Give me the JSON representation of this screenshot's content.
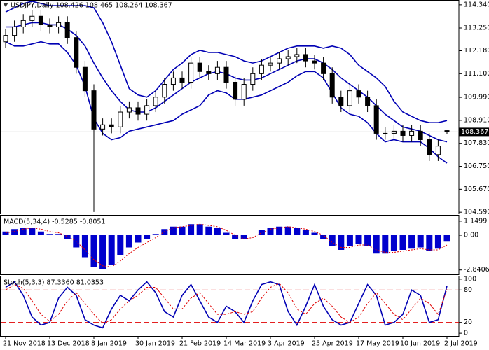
{
  "chart_data": [
    {
      "type": "candlestick",
      "title": "USDJPY,Daily 108.426 108.465 108.264 108.367",
      "categories": [
        "21 Nov 2018",
        null,
        null,
        null,
        null,
        "13 Dec 2018",
        null,
        null,
        null,
        null,
        "8 Jan 2019",
        null,
        null,
        null,
        null,
        "30 Jan 2019",
        null,
        null,
        null,
        null,
        "21 Feb 2019",
        null,
        null,
        null,
        null,
        "14 Mar 2019",
        null,
        null,
        null,
        null,
        "3 Apr 2019",
        null,
        null,
        null,
        null,
        "25 Apr 2019",
        null,
        null,
        null,
        null,
        "17 May 2019",
        null,
        null,
        null,
        null,
        "10 Jun 2019",
        null,
        null,
        null,
        null,
        "2 Jul 2019"
      ],
      "open": [
        112.6,
        112.9,
        113.3,
        113.6,
        113.8,
        113.4,
        113.3,
        113.5,
        112.8,
        111.4,
        110.3,
        108.5,
        108.7,
        108.6,
        109.3,
        109.5,
        109.2,
        109.6,
        110.0,
        110.6,
        110.9,
        110.7,
        111.6,
        111.2,
        111.1,
        111.4,
        110.7,
        109.9,
        110.6,
        111.1,
        111.5,
        111.6,
        111.8,
        111.9,
        112.0,
        111.7,
        111.6,
        111.1,
        110.0,
        109.6,
        110.3,
        110.0,
        109.6,
        108.3,
        108.3,
        108.4,
        108.2,
        108.4,
        108.0,
        107.3,
        108.426
      ],
      "high": [
        113.2,
        113.6,
        113.9,
        114.1,
        114.1,
        113.7,
        113.8,
        113.8,
        113.1,
        111.7,
        110.6,
        109.0,
        109.0,
        109.6,
        109.8,
        109.8,
        109.9,
        110.3,
        110.9,
        111.2,
        111.2,
        111.9,
        111.9,
        111.5,
        111.7,
        111.7,
        111.0,
        110.9,
        111.4,
        111.8,
        111.9,
        112.1,
        112.2,
        112.3,
        112.3,
        112.0,
        111.9,
        111.4,
        110.3,
        110.6,
        110.6,
        110.3,
        109.9,
        108.6,
        108.7,
        108.7,
        108.7,
        108.7,
        108.3,
        108.0,
        108.465
      ],
      "low": [
        112.3,
        112.6,
        113.0,
        113.3,
        113.1,
        113.0,
        113.0,
        112.5,
        111.1,
        110.0,
        104.6,
        108.2,
        108.3,
        108.3,
        109.0,
        108.9,
        108.9,
        109.3,
        109.7,
        110.3,
        110.4,
        110.4,
        110.9,
        110.8,
        110.8,
        110.4,
        109.6,
        109.6,
        110.3,
        110.8,
        111.2,
        111.3,
        111.5,
        111.6,
        111.4,
        111.3,
        110.8,
        109.7,
        109.3,
        109.3,
        109.7,
        109.3,
        108.0,
        108.0,
        108.0,
        107.9,
        107.9,
        107.7,
        107.0,
        107.0,
        108.264
      ],
      "close": [
        112.9,
        113.3,
        113.6,
        113.8,
        113.4,
        113.3,
        113.5,
        112.8,
        111.4,
        110.3,
        108.5,
        108.7,
        108.6,
        109.3,
        109.5,
        109.2,
        109.6,
        110.0,
        110.6,
        110.9,
        110.7,
        111.6,
        111.2,
        111.1,
        111.4,
        110.7,
        109.9,
        110.6,
        111.1,
        111.5,
        111.6,
        111.8,
        111.9,
        112.0,
        111.7,
        111.6,
        111.1,
        110.0,
        109.6,
        110.3,
        110.0,
        109.6,
        108.3,
        108.3,
        108.4,
        108.2,
        108.4,
        108.0,
        107.3,
        107.7,
        108.367
      ],
      "upper_band": [
        114.0,
        114.2,
        114.4,
        114.5,
        114.4,
        114.3,
        114.3,
        114.3,
        114.3,
        114.3,
        114.2,
        113.5,
        112.6,
        111.5,
        110.4,
        110.1,
        110.0,
        110.3,
        110.8,
        111.3,
        111.6,
        112.0,
        112.2,
        112.1,
        112.1,
        112.0,
        111.9,
        111.7,
        111.6,
        111.7,
        111.9,
        112.1,
        112.3,
        112.4,
        112.4,
        112.4,
        112.3,
        112.4,
        112.3,
        112.0,
        111.5,
        111.2,
        110.9,
        110.5,
        109.8,
        109.3,
        109.1,
        108.9,
        108.8,
        108.8,
        108.9
      ],
      "middle_band": [
        113.3,
        113.3,
        113.4,
        113.5,
        113.5,
        113.4,
        113.4,
        113.2,
        112.9,
        112.4,
        111.6,
        110.9,
        110.3,
        109.8,
        109.4,
        109.3,
        109.3,
        109.5,
        109.8,
        110.1,
        110.4,
        110.7,
        110.9,
        111.1,
        111.2,
        111.1,
        110.9,
        110.8,
        110.8,
        110.9,
        111.1,
        111.3,
        111.5,
        111.7,
        111.8,
        111.8,
        111.6,
        111.3,
        110.9,
        110.6,
        110.3,
        110.0,
        109.6,
        109.2,
        108.9,
        108.6,
        108.5,
        108.4,
        108.2,
        108.0,
        107.9
      ],
      "lower_band": [
        112.6,
        112.4,
        112.4,
        112.5,
        112.6,
        112.5,
        112.5,
        112.1,
        111.5,
        110.5,
        109.0,
        108.3,
        108.0,
        108.1,
        108.4,
        108.5,
        108.6,
        108.7,
        108.8,
        108.9,
        109.2,
        109.4,
        109.6,
        110.1,
        110.3,
        110.2,
        109.9,
        109.9,
        110.0,
        110.1,
        110.3,
        110.5,
        110.7,
        111.0,
        111.2,
        111.2,
        110.9,
        110.2,
        109.5,
        109.2,
        109.1,
        108.8,
        108.3,
        107.9,
        108.0,
        107.9,
        107.9,
        107.9,
        107.6,
        107.2,
        106.9
      ],
      "band_color": "#0000b4",
      "last_price": {
        "value": 108.367,
        "label": "108.367"
      },
      "ylim": [
        104.53,
        114.5
      ],
      "yticks": [
        {
          "value": 114.34,
          "label": "114.340"
        },
        {
          "value": 113.25,
          "label": "113.250"
        },
        {
          "value": 112.18,
          "label": "112.180"
        },
        {
          "value": 111.1,
          "label": "111.100"
        },
        {
          "value": 109.99,
          "label": "109.990"
        },
        {
          "value": 108.91,
          "label": "108.910"
        },
        {
          "value": 107.83,
          "label": "107.830"
        },
        {
          "value": 106.75,
          "label": "106.750"
        },
        {
          "value": 105.67,
          "label": "105.670"
        },
        {
          "value": 104.59,
          "label": "104.590"
        }
      ]
    },
    {
      "type": "bar",
      "title": "MACD(5,34,4) -0.5285 -0.8051",
      "color": "#0000cd",
      "signal_color": "#e00000",
      "values": [
        0.3,
        0.5,
        0.6,
        0.6,
        0.3,
        0.1,
        0.1,
        -0.3,
        -1.0,
        -1.8,
        -2.6,
        -2.8,
        -2.4,
        -1.6,
        -1.0,
        -0.6,
        -0.3,
        0.1,
        0.5,
        0.7,
        0.7,
        0.9,
        0.9,
        0.7,
        0.6,
        0.2,
        -0.3,
        -0.3,
        0.0,
        0.4,
        0.6,
        0.7,
        0.7,
        0.6,
        0.4,
        0.2,
        -0.3,
        -0.9,
        -1.2,
        -0.9,
        -0.7,
        -0.9,
        -1.5,
        -1.5,
        -1.3,
        -1.2,
        -1.1,
        -1.0,
        -1.3,
        -1.1,
        -0.5285
      ],
      "signal": [
        0.2,
        0.3,
        0.5,
        0.6,
        0.5,
        0.3,
        0.2,
        -0.1,
        -0.5,
        -1.2,
        -2.0,
        -2.5,
        -2.6,
        -2.1,
        -1.5,
        -1.0,
        -0.6,
        -0.2,
        0.3,
        0.6,
        0.7,
        0.8,
        0.9,
        0.8,
        0.7,
        0.4,
        0.0,
        -0.3,
        -0.2,
        0.2,
        0.5,
        0.6,
        0.7,
        0.6,
        0.5,
        0.3,
        0.0,
        -0.6,
        -1.0,
        -1.0,
        -0.8,
        -0.8,
        -1.2,
        -1.4,
        -1.4,
        -1.3,
        -1.2,
        -1.1,
        -1.2,
        -1.2,
        -0.8051
      ],
      "ylim": [
        -3.2,
        1.6
      ],
      "yticks": [
        1.1499,
        {
          "value": 0,
          "label": "0.00"
        },
        -2.8406
      ]
    },
    {
      "type": "line",
      "title": "Stoch(5,3,3) 87.3360 81.0353",
      "color": "#0000b4",
      "signal_color": "#e00000",
      "main": [
        85,
        95,
        70,
        30,
        15,
        20,
        65,
        85,
        70,
        25,
        15,
        10,
        45,
        70,
        60,
        80,
        95,
        75,
        40,
        30,
        70,
        90,
        60,
        30,
        20,
        50,
        40,
        20,
        60,
        90,
        95,
        90,
        40,
        15,
        50,
        90,
        50,
        25,
        15,
        20,
        55,
        90,
        70,
        15,
        20,
        35,
        80,
        70,
        20,
        25,
        87.336
      ],
      "signal": [
        80,
        90,
        83,
        60,
        35,
        22,
        35,
        60,
        75,
        55,
        35,
        18,
        25,
        45,
        60,
        70,
        85,
        85,
        65,
        45,
        45,
        65,
        75,
        55,
        35,
        35,
        40,
        35,
        40,
        65,
        85,
        92,
        75,
        45,
        35,
        55,
        65,
        50,
        30,
        20,
        30,
        55,
        75,
        55,
        35,
        25,
        45,
        65,
        55,
        35,
        81.0353
      ],
      "levels": [
        80,
        20
      ],
      "ylim": [
        -5,
        105
      ],
      "yticks": [
        100,
        80,
        20,
        0
      ]
    }
  ]
}
